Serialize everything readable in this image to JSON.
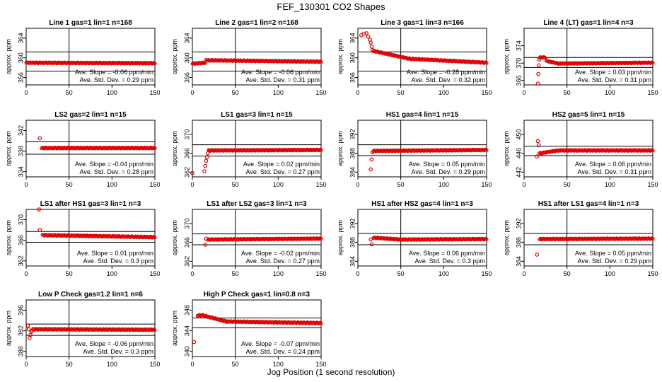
{
  "figure": {
    "title": "FEF_130301  CO2 Shapes",
    "xlabel": "Jog Position (1 second resolution)"
  },
  "colors": {
    "points": "#e00000",
    "axes": "#000000"
  },
  "chart_data": [
    {
      "type": "scatter",
      "title": "Line 1 gas=1 lin=1 n=168",
      "ylabel": "approx. ppm",
      "xlim": [
        0,
        150
      ],
      "ylim": [
        354.5,
        366
      ],
      "xticks": [
        0,
        50,
        100,
        150
      ],
      "yticks": [
        356,
        360,
        364
      ],
      "hlines": [
        361.2,
        357.3
      ],
      "vline": 50,
      "slope": "Ave. Slope = -0.06  ppm/min",
      "std": "Ave. Std. Dev. = 0.29  ppm",
      "series": [
        {
          "segments": [
            [
              0,
              359.0,
              150,
              358.9
            ]
          ],
          "points": []
        }
      ]
    },
    {
      "type": "scatter",
      "title": "Line 2 gas=1 lin=2 n=168",
      "ylabel": "approx. ppm",
      "xlim": [
        0,
        150
      ],
      "ylim": [
        354.5,
        366
      ],
      "xticks": [
        0,
        50,
        100,
        150
      ],
      "yticks": [
        356,
        360,
        364
      ],
      "hlines": [
        361.2,
        357.3
      ],
      "vline": 50,
      "slope": "Ave. Slope = -0.06  ppm/min",
      "std": "Ave. Std. Dev. = 0.31  ppm",
      "series": [
        {
          "segments": [
            [
              0,
              358.8,
              15,
              359.0
            ],
            [
              16,
              359.5,
              150,
              359.2
            ]
          ],
          "points": []
        }
      ]
    },
    {
      "type": "scatter",
      "title": "Line 3 gas=1 lin=3 n=166",
      "ylabel": "approx. ppm",
      "xlim": [
        0,
        150
      ],
      "ylim": [
        354.5,
        366
      ],
      "xticks": [
        0,
        50,
        100,
        150
      ],
      "yticks": [
        356,
        360,
        364
      ],
      "hlines": [
        361.2,
        357.3
      ],
      "vline": 50,
      "slope": "Ave. Slope = -0.28  ppm/min",
      "std": "Ave. Std. Dev. = 0.32  ppm",
      "series": [
        {
          "segments": [
            [
              18,
              361.4,
              60,
              359.8
            ],
            [
              60,
              359.8,
              150,
              359.0
            ]
          ],
          "points": [
            [
              4,
              364.6
            ],
            [
              7,
              364.9
            ],
            [
              10,
              365.0
            ],
            [
              12,
              364.3
            ],
            [
              14,
              363.7
            ],
            [
              15,
              363.1
            ],
            [
              16,
              362.3
            ],
            [
              17,
              361.6
            ]
          ]
        }
      ]
    },
    {
      "type": "scatter",
      "title": "Line 4 (LT) gas=1 lin=4 n=3",
      "ylabel": "approx. ppm",
      "xlim": [
        0,
        150
      ],
      "ylim": [
        365,
        378
      ],
      "xticks": [
        0,
        50,
        100,
        150
      ],
      "yticks": [
        366,
        370,
        374
      ],
      "hlines": [
        371.3,
        369.0
      ],
      "vline": 50,
      "slope": "Ave. Slope = 0.03  ppm/min",
      "std": "Ave. Std. Dev. = 0.31  ppm",
      "series": [
        {
          "segments": [
            [
              18,
              371.3,
              25,
              371.3
            ],
            [
              26,
              370.5,
              40,
              369.9
            ],
            [
              40,
              369.9,
              150,
              370.1
            ]
          ],
          "points": [
            [
              16,
              365.3
            ],
            [
              16.5,
              367.5
            ],
            [
              17,
              369.5
            ],
            [
              17.5,
              370.8
            ]
          ]
        }
      ]
    },
    {
      "type": "scatter",
      "title": "LS2 gas=2 lin=1 n=15",
      "ylabel": "approx. ppm",
      "xlim": [
        0,
        150
      ],
      "ylim": [
        333,
        344
      ],
      "xticks": [
        0,
        50,
        100,
        150
      ],
      "yticks": [
        334,
        338,
        342
      ],
      "hlines": [
        339.8,
        337.4
      ],
      "vline": 50,
      "slope": "Ave. Slope = -0.04  ppm/min",
      "std": "Ave. Std. Dev. = 0.28  ppm",
      "series": [
        {
          "segments": [
            [
              18,
              338.6,
              150,
              338.6
            ]
          ],
          "points": [
            [
              16,
              340.5
            ]
          ]
        }
      ]
    },
    {
      "type": "scatter",
      "title": "LS1 gas=3 lin=1 n=15",
      "ylabel": "approx. ppm",
      "xlim": [
        0,
        150
      ],
      "ylim": [
        361,
        373
      ],
      "xticks": [
        0,
        50,
        100,
        150
      ],
      "yticks": [
        362,
        366,
        370
      ],
      "hlines": [
        367.8,
        365.4
      ],
      "vline": 50,
      "slope": "Ave. Slope = 0.02  ppm/min",
      "std": "Ave. Std. Dev. = 0.27  ppm",
      "series": [
        {
          "segments": [
            [
              19,
              366.6,
              150,
              366.7
            ]
          ],
          "points": [
            [
              0,
              361.8
            ],
            [
              14,
              362.2
            ],
            [
              15,
              363.3
            ],
            [
              16,
              364.4
            ],
            [
              17,
              365.2
            ],
            [
              18,
              366.0
            ]
          ]
        }
      ]
    },
    {
      "type": "scatter",
      "title": "HS1 gas=4 lin=1 n=15",
      "ylabel": "approx. ppm",
      "xlim": [
        0,
        150
      ],
      "ylim": [
        383,
        395
      ],
      "xticks": [
        0,
        50,
        100,
        150
      ],
      "yticks": [
        384,
        388,
        392
      ],
      "hlines": [
        389.8,
        387.5
      ],
      "vline": 50,
      "slope": "Ave. Slope = 0.05  ppm/min",
      "std": "Ave. Std. Dev. = 0.29  ppm",
      "series": [
        {
          "segments": [
            [
              18,
              388.5,
              150,
              388.7
            ]
          ],
          "points": [
            [
              15,
              384.6
            ],
            [
              16,
              386.7
            ],
            [
              17,
              388.2
            ]
          ]
        }
      ]
    },
    {
      "type": "scatter",
      "title": "HS2 gas=5 lin=1 n=15",
      "ylabel": "approx. ppm",
      "xlim": [
        0,
        150
      ],
      "ylim": [
        441,
        453
      ],
      "xticks": [
        0,
        50,
        100,
        150
      ],
      "yticks": [
        442,
        446,
        450
      ],
      "hlines": [
        447.5,
        445.5
      ],
      "vline": 50,
      "slope": "Ave. Slope = 0.06  ppm/min",
      "std": "Ave. Std. Dev. = 0.31  ppm",
      "series": [
        {
          "segments": [
            [
              19,
              446.0,
              40,
              446.6
            ],
            [
              40,
              446.6,
              150,
              446.6
            ]
          ],
          "points": [
            [
              15,
              445.3
            ],
            [
              16,
              448.6
            ],
            [
              17,
              447.7
            ],
            [
              18,
              446.0
            ]
          ]
        }
      ]
    },
    {
      "type": "scatter",
      "title": "LS1 after HS1 gas=3 lin=1 n=3",
      "ylabel": "approx. ppm",
      "xlim": [
        0,
        150
      ],
      "ylim": [
        361,
        372
      ],
      "xticks": [
        0,
        50,
        100,
        150
      ],
      "yticks": [
        362,
        366,
        370
      ],
      "hlines": [
        367.7,
        365.6
      ],
      "vline": 50,
      "slope": "Ave. Slope = 0.01  ppm/min",
      "std": "Ave. Std. Dev. = 0.3  ppm",
      "series": [
        {
          "segments": [
            [
              19,
              367.0,
              150,
              366.6
            ]
          ],
          "points": [
            [
              15,
              372.0
            ],
            [
              16,
              368.0
            ]
          ]
        }
      ]
    },
    {
      "type": "scatter",
      "title": "LS1 after LS2 gas=3 lin=1 n=3",
      "ylabel": "approx. ppm",
      "xlim": [
        0,
        150
      ],
      "ylim": [
        361,
        373
      ],
      "xticks": [
        0,
        50,
        100,
        150
      ],
      "yticks": [
        362,
        366,
        370
      ],
      "hlines": [
        367.8,
        365.5
      ],
      "vline": 50,
      "slope": "Ave. Slope = -0.02  ppm/min",
      "std": "Ave. Std. Dev. = 0.27  ppm",
      "series": [
        {
          "segments": [
            [
              18,
              366.6,
              150,
              366.8
            ]
          ],
          "points": [
            [
              15,
              365.5
            ],
            [
              16,
              366.8
            ]
          ]
        }
      ]
    },
    {
      "type": "scatter",
      "title": "HS1 after HS2 gas=4 lin=1 n=3",
      "ylabel": "approx. ppm",
      "xlim": [
        0,
        150
      ],
      "ylim": [
        383,
        395
      ],
      "xticks": [
        0,
        50,
        100,
        150
      ],
      "yticks": [
        384,
        388,
        392
      ],
      "hlines": [
        389.9,
        387.5
      ],
      "vline": 50,
      "slope": "Ave. Slope = 0.06  ppm/min",
      "std": "Ave. Std. Dev. = 0.3  ppm",
      "series": [
        {
          "segments": [
            [
              18,
              389.0,
              50,
              388.6
            ],
            [
              50,
              388.6,
              150,
              388.7
            ]
          ],
          "points": [
            [
              15,
              388.6
            ],
            [
              16,
              387.6
            ]
          ]
        }
      ]
    },
    {
      "type": "scatter",
      "title": "HS1 after LS1 gas=4 lin=1 n=3",
      "ylabel": "approx. ppm",
      "xlim": [
        0,
        150
      ],
      "ylim": [
        383,
        395
      ],
      "xticks": [
        0,
        50,
        100,
        150
      ],
      "yticks": [
        384,
        388,
        392
      ],
      "hlines": [
        389.9,
        387.5
      ],
      "vline": 50,
      "slope": "Ave. Slope = 0.05  ppm/min",
      "std": "Ave. Std. Dev. = 0.29  ppm",
      "series": [
        {
          "segments": [
            [
              18,
              388.7,
              150,
              388.8
            ]
          ],
          "points": [
            [
              15,
              385.4
            ]
          ]
        }
      ]
    },
    {
      "type": "scatter",
      "title": "Low P Check gas=1.2 lin=1 n=6",
      "ylabel": "approx. ppm",
      "xlim": [
        0,
        150
      ],
      "ylim": [
        387,
        398
      ],
      "xticks": [
        0,
        50,
        100,
        150
      ],
      "yticks": [
        388,
        392,
        396
      ],
      "hlines": [
        393.3,
        391.1
      ],
      "vline": 50,
      "slope": "Ave. Slope = -0.06  ppm/min",
      "std": "Ave. Std. Dev. = 0.3  ppm",
      "series": [
        {
          "segments": [
            [
              8,
              392.3,
              150,
              392.2
            ]
          ],
          "points": [
            [
              2,
              393.0
            ],
            [
              3,
              392.3
            ],
            [
              4,
              390.6
            ],
            [
              5,
              391.2
            ],
            [
              6,
              391.8
            ],
            [
              7,
              392.0
            ]
          ]
        }
      ]
    },
    {
      "type": "scatter",
      "title": "High P Check gas=1 lin=0.8 n=3",
      "ylabel": "approx. ppm",
      "xlim": [
        0,
        150
      ],
      "ylim": [
        339,
        350
      ],
      "xticks": [
        0,
        50,
        100,
        150
      ],
      "yticks": [
        340,
        344,
        348
      ],
      "hlines": [
        346.5,
        344.6
      ],
      "vline": 50,
      "slope": "Ave. Slope = -0.07  ppm/min",
      "std": "Ave. Std. Dev. = 0.24  ppm",
      "series": [
        {
          "segments": [
            [
              6,
              347.0,
              12,
              347.0
            ],
            [
              12,
              347.0,
              40,
              345.8
            ],
            [
              40,
              345.8,
              150,
              345.5
            ]
          ],
          "points": [
            [
              2,
              341.8
            ]
          ]
        }
      ]
    }
  ]
}
